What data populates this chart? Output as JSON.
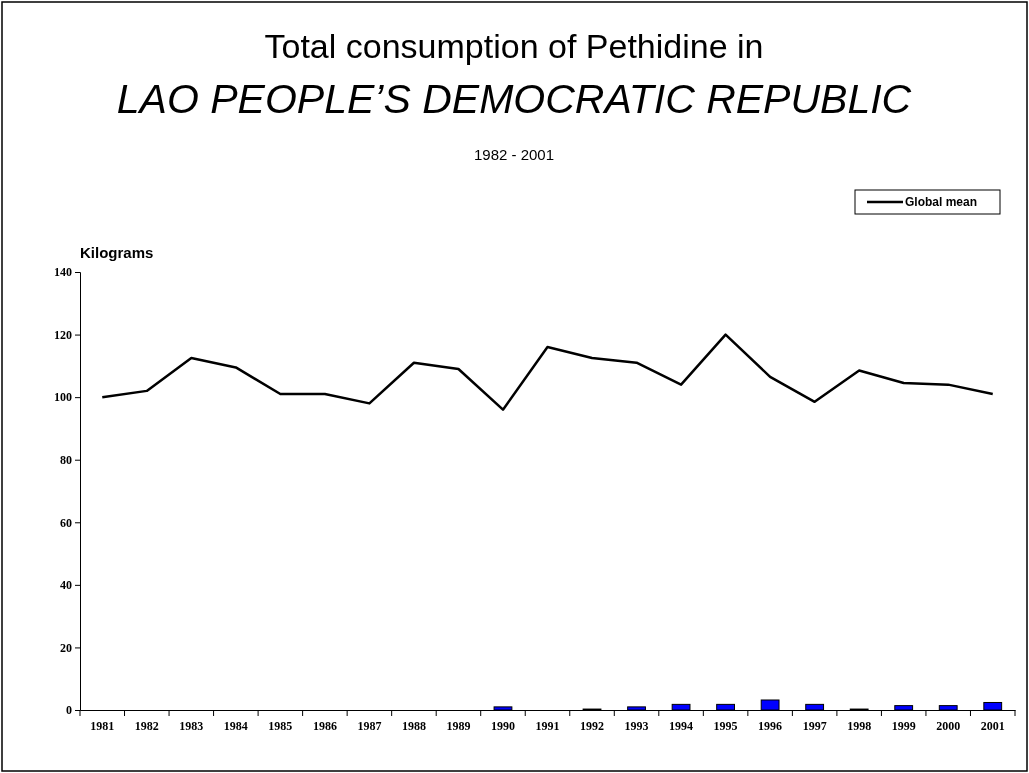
{
  "chart_data": {
    "type": "bar",
    "title": "Total consumption of Pethidine in",
    "subtitle": "LAO PEOPLE’S DEMOCRATIC REPUBLIC",
    "annotations": [
      "1982 - 2001"
    ],
    "ylabel": "Kilograms",
    "categories": [
      "1981",
      "1982",
      "1983",
      "1984",
      "1985",
      "1986",
      "1987",
      "1988",
      "1989",
      "1990",
      "1991",
      "1992",
      "1993",
      "1994",
      "1995",
      "1996",
      "1997",
      "1998",
      "1999",
      "2000",
      "2001"
    ],
    "series": [
      {
        "color": "#0000ff",
        "values": [
          0,
          0,
          0,
          0,
          0,
          0,
          0,
          0,
          0,
          1,
          0,
          0.3,
          1,
          1.8,
          1.8,
          3.2,
          1.8,
          0.3,
          1.4,
          1.4,
          2.4
        ]
      },
      {
        "type": "line",
        "name": "Global mean",
        "color": "#000000",
        "values": [
          100,
          102,
          112.5,
          109.5,
          101,
          101,
          98,
          111,
          109,
          96,
          116,
          112.5,
          111,
          104,
          120,
          106.5,
          98.5,
          108.5,
          104.5,
          104,
          101
        ]
      }
    ],
    "ylim": [
      0,
      140
    ],
    "yticks": [
      0,
      20,
      40,
      60,
      80,
      100,
      120,
      140
    ],
    "grid": false,
    "legend": "top right",
    "marker": "none",
    "line_style": "solid"
  }
}
